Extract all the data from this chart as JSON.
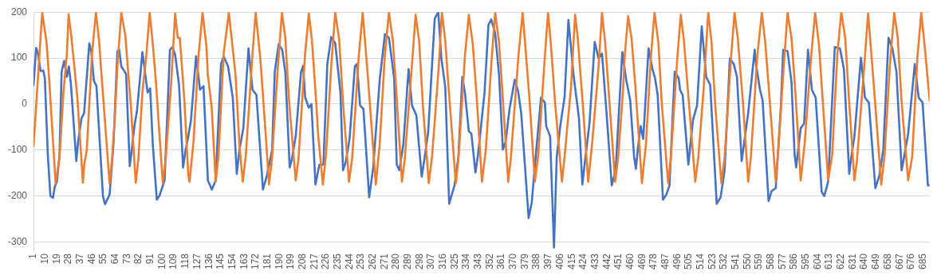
{
  "chart_data": {
    "type": "line",
    "xlim": [
      1,
      690
    ],
    "xticks": [
      1,
      10,
      19,
      28,
      37,
      46,
      55,
      64,
      73,
      82,
      91,
      100,
      109,
      118,
      127,
      136,
      145,
      154,
      163,
      172,
      181,
      190,
      199,
      208,
      217,
      226,
      235,
      244,
      253,
      262,
      271,
      280,
      289,
      298,
      307,
      316,
      325,
      334,
      343,
      352,
      361,
      370,
      379,
      388,
      397,
      406,
      415,
      424,
      433,
      442,
      451,
      460,
      469,
      478,
      487,
      496,
      505,
      514,
      523,
      532,
      541,
      550,
      559,
      568,
      577,
      586,
      595,
      604,
      613,
      622,
      631,
      640,
      649,
      658,
      667,
      676,
      685
    ],
    "ylim": [
      -320,
      200
    ],
    "yticks": [
      -300,
      -200,
      -100,
      0,
      100,
      200
    ],
    "grid": "y",
    "legend": false,
    "marker": "none",
    "line_style": "solid",
    "series": [
      {
        "color": "#4472c4",
        "x": [
          1,
          3,
          4.4,
          6.4,
          8.5,
          9.7,
          12,
          14,
          16,
          17.3,
          19,
          21,
          22.6,
          24.6,
          26.6,
          28.2,
          29.8,
          33.9,
          35.3,
          37.9,
          39.9,
          43.9,
          45.4,
          47.4,
          49.4,
          54.4,
          56,
          59.5,
          62.5,
          65.5,
          66.9,
          68.5,
          70.5,
          72.2,
          75,
          76.6,
          78.6,
          80.6,
          84.7,
          86.3,
          88.7,
          90.7,
          92.7,
          95.8,
          97.8,
          101.8,
          105.9,
          107.9,
          109.9,
          112.9,
          116,
          118,
          120,
          122,
          126,
          129,
          131.7,
          135.1,
          138.1,
          141.1,
          145.2,
          147.2,
          150.6,
          154.2,
          157.3,
          159.3,
          162.3,
          166.3,
          169.4,
          172.4,
          177.4,
          180.5,
          184.5,
          186.5,
          189.5,
          192.2,
          194.6,
          198,
          199.6,
          202.6,
          206.7,
          208.3,
          209.9,
          212.7,
          214.7,
          217.8,
          220.8,
          223.9,
          226.9,
          229.9,
          233,
          237,
          239,
          241,
          244,
          248.1,
          249.7,
          252.1,
          254.7,
          259.1,
          262.2,
          267.2,
          271.2,
          274.3,
          278.3,
          280.3,
          282.3,
          285.4,
          289.4,
          292,
          295.4,
          299.5,
          301.5,
          304.5,
          309.5,
          312.2,
          314.6,
          317.6,
          320.6,
          324.7,
          327.7,
          330.7,
          332.7,
          335.7,
          337.7,
          340.8,
          342.8,
          344.8,
          347.8,
          350.8,
          352.9,
          355.9,
          358.9,
          361.9,
          364,
          367,
          371,
          373.6,
          376,
          381.7,
          384.1,
          385.7,
          391.2,
          394.2,
          395.2,
          398.2,
          401.2,
          403.3,
          406.3,
          409.3,
          412.3,
          416.4,
          420.4,
          423,
          425.4,
          428.5,
          432.5,
          435.5,
          438.1,
          441.6,
          445.6,
          448.6,
          453.7,
          456.7,
          459.8,
          462.8,
          464.2,
          465.8,
          467.8,
          469.8,
          473.9,
          476.9,
          478.9,
          480.9,
          485,
          487.6,
          490,
          494,
          497.1,
          498.1,
          500.1,
          504.5,
          506.1,
          508.1,
          511.2,
          514.8,
          518.2,
          521.3,
          526.3,
          529.3,
          532.4,
          536.4,
          539.4,
          541.9,
          545.5,
          547.5,
          550.5,
          555.5,
          556.5,
          559.6,
          561.6,
          566.2,
          568.6,
          571.7,
          575.7,
          577.4,
          580.8,
          583.8,
          586.2,
          587.4,
          588.9,
          590.9,
          593.5,
          596.5,
          599.5,
          602.4,
          607,
          609,
          612,
          617.1,
          621.1,
          624.1,
          628.2,
          629.8,
          632.2,
          637.2,
          640.3,
          643.3,
          648.3,
          651.4,
          654.4,
          658.4,
          661.4,
          664.5,
          668.5,
          670.5,
          673.5,
          678.6,
          681.6,
          684.6,
          688.7,
          690
        ],
        "values": [
          41,
          122,
          111,
          72,
          73,
          56,
          -110,
          -200,
          -204,
          -180,
          -169,
          -110,
          70,
          94,
          59,
          82,
          42,
          -124,
          -82,
          -31,
          -20,
          132,
          115,
          51,
          39,
          -200,
          -218,
          -197,
          -87,
          115,
          118,
          82,
          73,
          65,
          -135,
          -99,
          -48,
          -14,
          113,
          79,
          25,
          34,
          -87,
          -208,
          -200,
          -166,
          118,
          124,
          107,
          42,
          -138,
          -99,
          -70,
          -37,
          104,
          31,
          39,
          -166,
          -186,
          -166,
          87,
          104,
          82,
          14,
          -152,
          -101,
          -53,
          121,
          31,
          20,
          -186,
          -155,
          -99,
          70,
          130,
          118,
          70,
          -138,
          -121,
          -70,
          70,
          83,
          14,
          -8,
          0,
          -175,
          -132,
          -132,
          87,
          146,
          132,
          25,
          -144,
          -127,
          -76,
          82,
          87,
          -3,
          -11,
          -203,
          -138,
          53,
          152,
          144,
          56,
          -132,
          -144,
          -87,
          76,
          -3,
          -25,
          -158,
          -121,
          -59,
          186,
          200,
          99,
          37,
          -217,
          -177,
          -115,
          59,
          25,
          -59,
          -65,
          -149,
          -110,
          -56,
          25,
          172,
          184,
          155,
          65,
          -99,
          -82,
          -11,
          53,
          28,
          -20,
          -248,
          -214,
          -160,
          14,
          3,
          -48,
          -70,
          -312,
          -115,
          -42,
          14,
          183,
          59,
          -31,
          -175,
          -115,
          -42,
          135,
          99,
          110,
          -20,
          -177,
          -144,
          113,
          53,
          8,
          -115,
          -141,
          -93,
          -48,
          -76,
          121,
          76,
          56,
          20,
          -208,
          -197,
          -177,
          70,
          56,
          31,
          20,
          -132,
          -87,
          -34,
          -3,
          169,
          59,
          42,
          -217,
          -203,
          -144,
          99,
          87,
          59,
          -124,
          -82,
          -20,
          118,
          87,
          31,
          8,
          -211,
          -189,
          -183,
          -3,
          118,
          115,
          48,
          -110,
          -138,
          -99,
          -53,
          -42,
          118,
          31,
          14,
          -191,
          -200,
          -169,
          124,
          121,
          76,
          -152,
          -115,
          -70,
          101,
          14,
          3,
          -183,
          -155,
          -99,
          144,
          121,
          70,
          -144,
          -113,
          -65,
          87,
          14,
          3,
          -177,
          -177
        ]
      },
      {
        "color": "#ed7d31",
        "x": [
          1,
          7.7,
          11,
          13,
          18,
          21,
          24,
          26.6,
          28,
          30,
          33,
          34.7,
          39,
          40,
          42,
          46,
          49,
          51.4,
          53.4,
          59.5,
          61.5,
          63.5,
          65.5,
          68.5,
          71.6,
          73.6,
          76,
          77.6,
          79.6,
          81.6,
          84.7,
          87.7,
          90.3,
          92.7,
          95,
          100.4,
          102.8,
          106.9,
          109.9,
          111.9,
          113.5,
          117,
          120,
          121,
          124,
          128,
          131,
          134,
          135,
          138,
          141.1,
          143.2,
          147.2,
          151.2,
          153.2,
          156.3,
          159.3,
          161.9,
          164.3,
          169.4,
          171.8,
          175.4,
          178.4,
          182.1,
          184.5,
          188.5,
          192,
          194.6,
          197.6,
          202.6,
          204.7,
          209.7,
          212.7,
          215.1,
          218.4,
          219.8,
          223.5,
          225.9,
          229.9,
          233,
          236,
          239,
          243.6,
          246,
          251,
          254.1,
          258.1,
          264.2,
          267.2,
          271.2,
          274.3,
          277.3,
          279.3,
          284.3,
          286.4,
          292.4,
          294.8,
          297.5,
          300.5,
          304.9,
          307.5,
          312.6,
          315,
          317.6,
          319.6,
          325.7,
          327.7,
          332.7,
          335.7,
          338.7,
          341.8,
          345.8,
          348.8,
          352.9,
          355.9,
          358.9,
          360.9,
          366,
          368,
          374,
          377.1,
          382.1,
          386.5,
          389.1,
          394.2,
          396.6,
          398.6,
          402.2,
          407.3,
          409.3,
          414.3,
          417.4,
          419.4,
          423.4,
          427.5,
          430.5,
          435.5,
          438.1,
          440.6,
          442.6,
          448.2,
          450.6,
          454.3,
          455.7,
          458.2,
          460.8,
          463.8,
          468.8,
          471.9,
          475.9,
          478.5,
          481.5,
          484,
          489,
          491,
          496.1,
          498.7,
          501.1,
          505.1,
          509.8,
          512.2,
          516.2,
          519.8,
          522.3,
          525.3,
          529.9,
          532.4,
          537.4,
          540,
          542.4,
          546.5,
          550.5,
          552.5,
          557.5,
          561,
          563.6,
          566.6,
          571.7,
          573.7,
          577.8,
          580.8,
          583.8,
          586.8,
          590.9,
          593.9,
          598.9,
          602,
          605,
          607,
          612,
          615.1,
          619.1,
          622.1,
          625.1,
          628.2,
          632.2,
          634.2,
          640.3,
          642.7,
          646.3,
          649.3,
          652.8,
          655.4,
          659.4,
          662.8,
          665.5,
          668.5,
          673.5,
          676.6,
          680.6,
          683.6,
          686.6,
          690
        ],
        "values": [
          -92,
          199,
          135,
          56,
          -173,
          -117,
          25,
          107,
          195,
          149,
          65,
          14,
          -171,
          -132,
          -99,
          110,
          199,
          138,
          59,
          -173,
          -115,
          -31,
          82,
          199,
          149,
          76,
          -8,
          -82,
          -171,
          -121,
          25,
          104,
          199,
          132,
          53,
          -172,
          -113,
          48,
          197,
          144,
          144,
          8,
          -155,
          -169,
          -82,
          110,
          199,
          124,
          65,
          -8,
          -169,
          -115,
          110,
          199,
          146,
          65,
          -87,
          -169,
          -110,
          110,
          199,
          99,
          -20,
          -175,
          -115,
          65,
          199,
          144,
          3,
          -166,
          -121,
          104,
          197,
          138,
          3,
          -65,
          -175,
          -110,
          82,
          199,
          141,
          3,
          -169,
          -118,
          101,
          199,
          59,
          -175,
          -87,
          110,
          199,
          138,
          56,
          -169,
          -121,
          101,
          194,
          138,
          -8,
          -172,
          -113,
          82,
          200,
          138,
          56,
          -172,
          -121,
          104,
          194,
          132,
          14,
          -169,
          -99,
          82,
          199,
          135,
          53,
          -169,
          -118,
          110,
          199,
          20,
          -169,
          -110,
          104,
          199,
          138,
          -3,
          -169,
          -115,
          37,
          194,
          146,
          -3,
          -169,
          -87,
          82,
          199,
          132,
          53,
          -169,
          -115,
          31,
          110,
          191,
          144,
          37,
          -172,
          -87,
          110,
          199,
          132,
          3,
          -172,
          -118,
          104,
          194,
          138,
          -3,
          -169,
          -115,
          31,
          200,
          135,
          -8,
          -172,
          -115,
          104,
          199,
          146,
          3,
          -169,
          -118,
          104,
          199,
          135,
          25,
          -169,
          -99,
          82,
          199,
          144,
          25,
          -166,
          -87,
          104,
          199,
          127,
          42,
          -166,
          -110,
          110,
          200,
          144,
          3,
          -166,
          -121,
          104,
          197,
          70,
          -42,
          -175,
          -110,
          82,
          199,
          144,
          3,
          -166,
          -115,
          101,
          199,
          115,
          8
        ]
      }
    ]
  }
}
